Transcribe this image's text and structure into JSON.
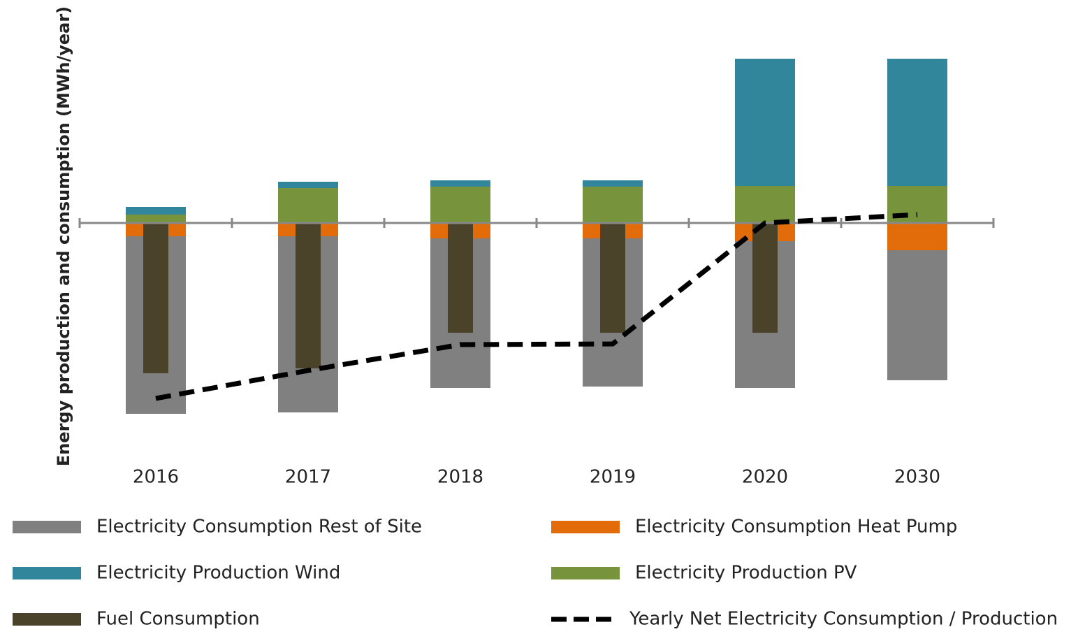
{
  "chart_data": {
    "type": "bar",
    "y_label": "Energy production and consumption (MWh/year)",
    "categories": [
      "2016",
      "2017",
      "2018",
      "2019",
      "2020",
      "2030"
    ],
    "ylim": [
      -34,
      25
    ],
    "series": [
      {
        "name": "Electricity Consumption Rest of Site",
        "color": "#808080",
        "values": [
          -25.4,
          -25.2,
          -21.4,
          -21.2,
          -21.0,
          -18.6
        ]
      },
      {
        "name": "Electricity Consumption Heat Pump",
        "color": "#e36c0a",
        "values": [
          -1.9,
          -1.9,
          -2.2,
          -2.2,
          -2.6,
          -3.9
        ]
      },
      {
        "name": "Electricity Production Wind",
        "color": "#31869b",
        "values": [
          1.1,
          0.9,
          0.9,
          0.9,
          18.2,
          18.2
        ]
      },
      {
        "name": "Electricity Production PV",
        "color": "#77933c",
        "values": [
          1.2,
          5.0,
          5.2,
          5.2,
          5.3,
          5.3
        ]
      },
      {
        "name": "Fuel Consumption",
        "color": "#4a4229",
        "overlay": true,
        "values": [
          -21.5,
          -20.8,
          -15.7,
          -15.7,
          -15.7,
          null
        ]
      },
      {
        "name": "Yearly Net Electricity Consumption / Production",
        "color": "#000000",
        "type": "line",
        "dashed": true,
        "values": [
          -25.1,
          -21.1,
          -17.4,
          -17.3,
          0,
          1.2
        ]
      }
    ]
  }
}
